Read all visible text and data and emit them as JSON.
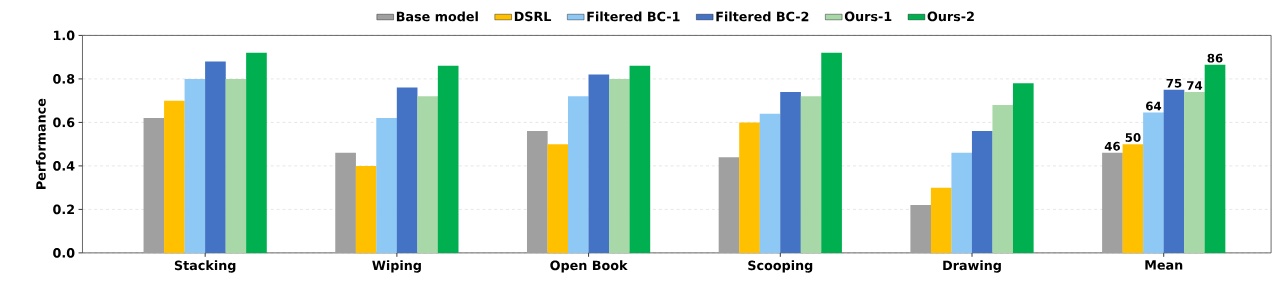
{
  "chart_data": {
    "type": "bar",
    "ylabel": "Performance",
    "categories": [
      "Stacking",
      "Wiping",
      "Open Book",
      "Scooping",
      "Drawing",
      "Mean"
    ],
    "series": [
      {
        "name": "Base model",
        "color": "#a0a0a0",
        "values": [
          0.62,
          0.46,
          0.56,
          0.44,
          0.22,
          0.46
        ]
      },
      {
        "name": "DSRL",
        "color": "#ffc000",
        "values": [
          0.7,
          0.4,
          0.5,
          0.6,
          0.3,
          0.5
        ]
      },
      {
        "name": "Filtered BC-1",
        "color": "#8ec8f5",
        "values": [
          0.8,
          0.62,
          0.72,
          0.64,
          0.46,
          0.645
        ]
      },
      {
        "name": "Filtered BC-2",
        "color": "#4472c4",
        "values": [
          0.88,
          0.76,
          0.82,
          0.74,
          0.56,
          0.75
        ]
      },
      {
        "name": "Ours-1",
        "color": "#a8d8a8",
        "values": [
          0.8,
          0.72,
          0.8,
          0.72,
          0.68,
          0.74
        ]
      },
      {
        "name": "Ours-2",
        "color": "#00b050",
        "values": [
          0.92,
          0.86,
          0.86,
          0.92,
          0.78,
          0.865
        ]
      }
    ],
    "ylim": [
      0,
      1
    ],
    "yticks": [
      {
        "value": 0,
        "label": "0.0"
      },
      0.2,
      0.4,
      0.6,
      0.8,
      {
        "value": 1,
        "label": "1.0"
      }
    ],
    "annotations": [
      "46",
      "50",
      "64",
      "75",
      "74",
      "86"
    ],
    "grid": "y",
    "legend": "top"
  }
}
